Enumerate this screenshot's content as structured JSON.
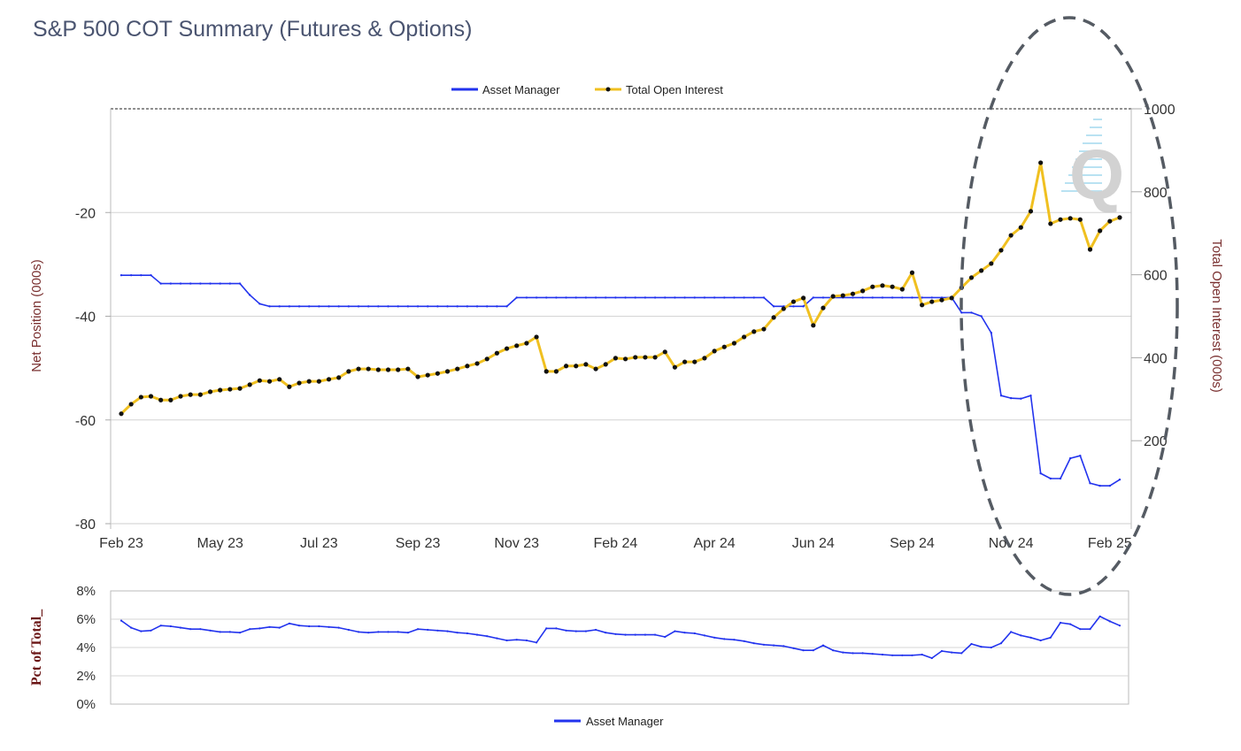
{
  "title": "S&P 500 COT Summary (Futures & Options)",
  "colors": {
    "asset_manager": "#2233ee",
    "total_open_interest": "#f0c020",
    "marker": "#111111",
    "axis_title": "#7a3030",
    "annotation": "#555b63"
  },
  "annotation": {
    "shape": "dashed-ellipse",
    "highlight": "Oct 24 – Feb 25"
  },
  "watermark": "Q",
  "chart_data": [
    {
      "type": "line",
      "legend": {
        "position": "top",
        "entries": [
          "Asset Manager",
          "Total Open Interest"
        ]
      },
      "x_tick_labels": [
        "Feb 23",
        "May 23",
        "Jul 23",
        "Sep 23",
        "Nov 23",
        "Feb 24",
        "Apr 24",
        "Jun 24",
        "Sep 24",
        "Nov 24",
        "Feb 25"
      ],
      "ylabel": "Net Position (000s)",
      "ylim": [
        -80,
        0
      ],
      "y_ticks": [
        "-20",
        "-40",
        "-60",
        "-80"
      ],
      "y2label": "Total Open Interest (000s)",
      "y2lim": [
        0,
        1000
      ],
      "y2_ticks": [
        "1000",
        "800",
        "600",
        "400",
        "200"
      ],
      "grid": true,
      "series": [
        {
          "name": "Asset Manager",
          "axis": "left",
          "values": [
            -32.1,
            -32.1,
            -32.1,
            -32.1,
            -33.7,
            -33.7,
            -33.7,
            -33.7,
            -33.7,
            -33.7,
            -33.7,
            -33.7,
            -33.7,
            -35.9,
            -37.6,
            -38.1,
            -38.1,
            -38.1,
            -38.1,
            -38.1,
            -38.1,
            -38.1,
            -38.1,
            -38.1,
            -38.1,
            -38.1,
            -38.1,
            -38.1,
            -38.1,
            -38.1,
            -38.1,
            -38.1,
            -38.1,
            -38.1,
            -38.1,
            -38.1,
            -38.1,
            -38.1,
            -38.1,
            -38.1,
            -36.4,
            -36.4,
            -36.4,
            -36.4,
            -36.4,
            -36.4,
            -36.4,
            -36.4,
            -36.4,
            -36.4,
            -36.4,
            -36.4,
            -36.4,
            -36.4,
            -36.4,
            -36.4,
            -36.4,
            -36.4,
            -36.4,
            -36.4,
            -36.4,
            -36.4,
            -36.4,
            -36.4,
            -36.4,
            -36.4,
            -38.1,
            -38.1,
            -38.1,
            -38.1,
            -36.4,
            -36.4,
            -36.4,
            -36.4,
            -36.4,
            -36.4,
            -36.4,
            -36.4,
            -36.4,
            -36.4,
            -36.4,
            -36.4,
            -36.4,
            -36.4,
            -36.4,
            -39.3,
            -39.3,
            -40.0,
            -43.2,
            -55.3,
            -55.8,
            -55.9,
            -55.3,
            -70.3,
            -71.3,
            -71.3,
            -67.4,
            -66.9,
            -72.2,
            -72.7,
            -72.7,
            -71.5
          ]
        },
        {
          "name": "Total Open Interest",
          "axis": "right",
          "values": [
            265,
            288,
            305,
            307,
            298,
            298,
            307,
            311,
            311,
            318,
            322,
            324,
            326,
            335,
            345,
            343,
            348,
            330,
            339,
            343,
            343,
            348,
            352,
            367,
            373,
            373,
            371,
            371,
            371,
            373,
            354,
            358,
            362,
            367,
            373,
            380,
            386,
            397,
            411,
            422,
            429,
            435,
            450,
            367,
            367,
            380,
            380,
            384,
            373,
            384,
            399,
            397,
            401,
            401,
            401,
            414,
            377,
            390,
            390,
            399,
            416,
            426,
            435,
            450,
            463,
            469,
            497,
            518,
            535,
            544,
            478,
            520,
            548,
            550,
            554,
            561,
            571,
            574,
            571,
            565,
            605,
            527,
            535,
            539,
            544,
            569,
            593,
            610,
            627,
            659,
            695,
            714,
            753,
            870,
            723,
            733,
            736,
            733,
            661,
            706,
            729,
            738
          ]
        }
      ]
    },
    {
      "type": "line",
      "legend": {
        "position": "bottom",
        "entries": [
          "Asset Manager"
        ]
      },
      "ylabel": "Pct of Total_",
      "ylim": [
        0,
        8
      ],
      "y_ticks": [
        "8%",
        "6%",
        "4%",
        "2%",
        "0%"
      ],
      "grid": true,
      "series": [
        {
          "name": "Asset Manager",
          "values": [
            5.9,
            5.4,
            5.15,
            5.2,
            5.55,
            5.5,
            5.4,
            5.3,
            5.3,
            5.2,
            5.1,
            5.1,
            5.05,
            5.3,
            5.35,
            5.45,
            5.4,
            5.7,
            5.55,
            5.5,
            5.5,
            5.45,
            5.4,
            5.25,
            5.1,
            5.05,
            5.1,
            5.1,
            5.1,
            5.05,
            5.3,
            5.25,
            5.2,
            5.15,
            5.05,
            5.0,
            4.9,
            4.8,
            4.65,
            4.5,
            4.55,
            4.5,
            4.35,
            5.35,
            5.35,
            5.2,
            5.15,
            5.15,
            5.25,
            5.05,
            4.95,
            4.9,
            4.9,
            4.9,
            4.9,
            4.75,
            5.15,
            5.05,
            5.0,
            4.85,
            4.7,
            4.6,
            4.55,
            4.45,
            4.3,
            4.2,
            4.15,
            4.1,
            3.95,
            3.8,
            3.8,
            4.15,
            3.8,
            3.65,
            3.6,
            3.6,
            3.55,
            3.5,
            3.45,
            3.45,
            3.45,
            3.5,
            3.25,
            3.75,
            3.65,
            3.6,
            4.25,
            4.05,
            4.0,
            4.3,
            5.1,
            4.85,
            4.7,
            4.5,
            4.7,
            5.75,
            5.65,
            5.3,
            5.3,
            6.2,
            5.85,
            5.55
          ]
        }
      ]
    }
  ]
}
